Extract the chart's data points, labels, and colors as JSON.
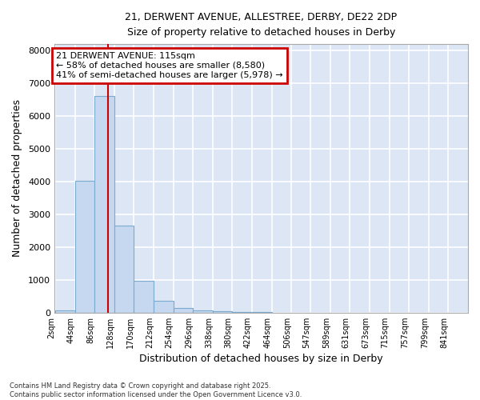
{
  "title_line1": "21, DERWENT AVENUE, ALLESTREE, DERBY, DE22 2DP",
  "title_line2": "Size of property relative to detached houses in Derby",
  "xlabel": "Distribution of detached houses by size in Derby",
  "ylabel": "Number of detached properties",
  "categories": [
    "2sqm",
    "44sqm",
    "86sqm",
    "128sqm",
    "170sqm",
    "212sqm",
    "254sqm",
    "296sqm",
    "338sqm",
    "380sqm",
    "422sqm",
    "464sqm",
    "506sqm",
    "547sqm",
    "589sqm",
    "631sqm",
    "673sqm",
    "715sqm",
    "757sqm",
    "799sqm",
    "841sqm"
  ],
  "bin_edges": [
    2,
    44,
    86,
    128,
    170,
    212,
    254,
    296,
    338,
    380,
    422,
    464,
    506,
    547,
    589,
    631,
    673,
    715,
    757,
    799,
    841,
    883
  ],
  "values": [
    60,
    4020,
    6620,
    2650,
    970,
    360,
    145,
    65,
    40,
    10,
    5,
    0,
    0,
    0,
    0,
    0,
    0,
    0,
    0,
    0,
    0
  ],
  "bar_color": "#c5d8f0",
  "bar_edge_color": "#7aabcf",
  "plot_bg_color": "#dce6f5",
  "fig_bg_color": "#ffffff",
  "grid_color": "#ffffff",
  "red_line_value": 115,
  "annotation_text": "21 DERWENT AVENUE: 115sqm\n← 58% of detached houses are smaller (8,580)\n41% of semi-detached houses are larger (5,978) →",
  "annotation_box_color": "#ffffff",
  "annotation_border_color": "#cc0000",
  "ylim": [
    0,
    8200
  ],
  "yticks": [
    0,
    1000,
    2000,
    3000,
    4000,
    5000,
    6000,
    7000,
    8000
  ],
  "footer_line1": "Contains HM Land Registry data © Crown copyright and database right 2025.",
  "footer_line2": "Contains public sector information licensed under the Open Government Licence v3.0."
}
